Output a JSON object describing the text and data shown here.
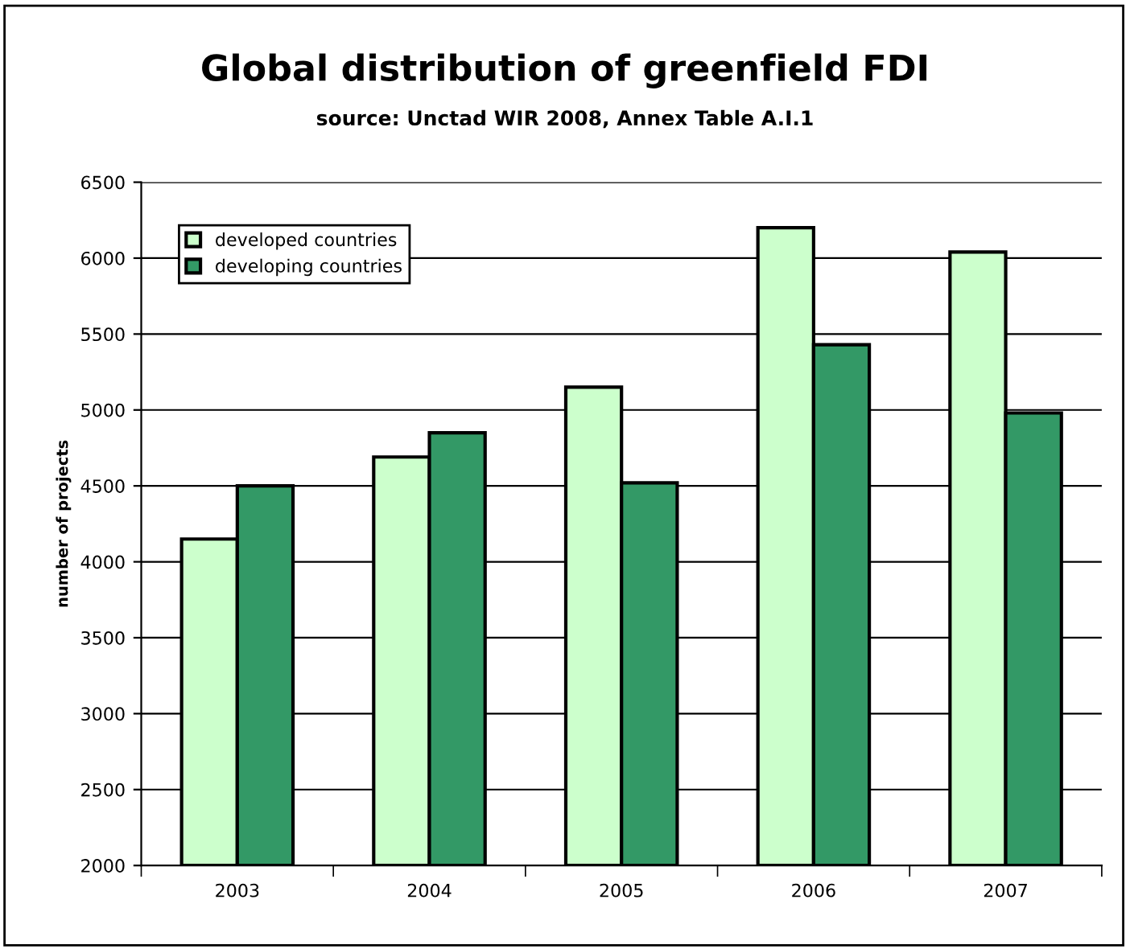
{
  "chart_data": {
    "type": "bar",
    "title": "Global distribution of greenfield FDI",
    "subtitle": "source: Unctad WIR 2008, Annex Table A.I.1",
    "ylabel": "number of projects",
    "categories": [
      "2003",
      "2004",
      "2005",
      "2006",
      "2007"
    ],
    "series": [
      {
        "name": "developed countries",
        "color": "#ccffcc",
        "values": [
          4150,
          4690,
          5150,
          6200,
          6040
        ]
      },
      {
        "name": "developing countries",
        "color": "#339966",
        "values": [
          4500,
          4850,
          4520,
          5430,
          4980
        ]
      }
    ],
    "ylim": [
      2000,
      6500
    ],
    "yticks": [
      2000,
      2500,
      3000,
      3500,
      4000,
      4500,
      5000,
      5500,
      6000,
      6500
    ],
    "grid": "y",
    "legend": "top left"
  }
}
